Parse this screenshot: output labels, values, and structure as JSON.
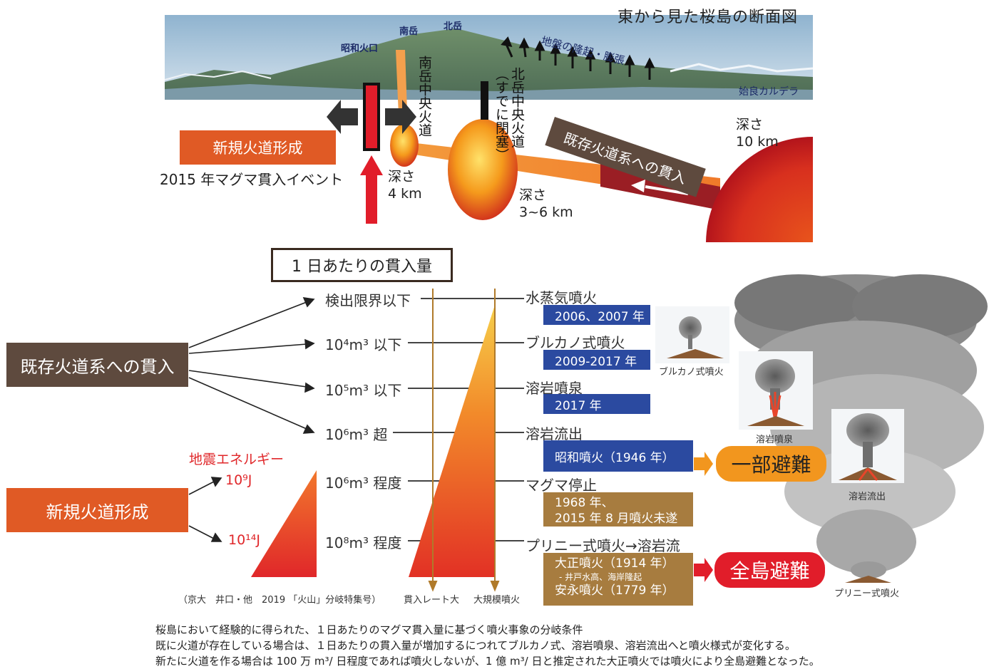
{
  "cross_section": {
    "title": "東から見た桜島の断面図",
    "peak_minami": "南岳",
    "peak_kita": "北岳",
    "showa_crater": "昭和火口",
    "uplift": "地盤の隆起・膨張",
    "aira_caldera": "始良カルデラ",
    "minami_conduit": "南岳中央火道",
    "kita_conduit": "北岳中央火道（すでに閉塞）",
    "new_conduit_box": "新規火道形成",
    "event_2015": "2015 年マグマ貫入イベント",
    "depth_4": [
      "深さ",
      "4 km"
    ],
    "depth_3_6": [
      "深さ",
      "3~6 km"
    ],
    "depth_10": [
      "深さ",
      "10 km"
    ],
    "existing_intrusion": "既存火道系への貫入"
  },
  "flow": {
    "header": "1 日あたりの貫入量",
    "existing_box": "既存火道系への貫入",
    "new_box": "新規火道形成",
    "seismic_energy": "地震エネルギー",
    "energy_low": "10⁹J",
    "energy_high": "10¹⁴J",
    "levels": [
      "検出限界以下",
      "10⁴m³ 以下",
      "10⁵m³ 以下",
      "10⁶m³ 超",
      "10⁶m³ 程度",
      "10⁸m³ 程度"
    ],
    "events": [
      "水蒸気噴火",
      "ブルカノ式噴火",
      "溶岩噴泉",
      "溶岩流出",
      "マグマ停止",
      "プリニー式噴火→溶岩流"
    ],
    "years_blue": [
      "2006、2007 年",
      "2009-2017 年",
      "2017 年",
      "昭和噴火（1946 年）"
    ],
    "magma_stop_years": [
      "1968 年、",
      "2015 年 8 月噴火未遂"
    ],
    "plinian_years": [
      "大正噴火（1914 年）",
      "- 井戸水高、海岸隆起",
      "安永噴火（1779 年）"
    ],
    "partial_evac": "一部避難",
    "full_evac": "全島避難",
    "axis_low": "貫入レート大",
    "axis_high": "大規模噴火",
    "citation": "（京大　井口・他　2019 「火山」分岐特集号）"
  },
  "plumes": {
    "vulcanian": "ブルカノ式噴火",
    "fountain": "溶岩噴泉",
    "lava_flow": "溶岩流出",
    "plinian": "プリニー式噴火"
  },
  "caption": [
    "桜島において経験的に得られた、１日あたりのマグマ貫入量に基づく噴火事象の分岐条件",
    "既に火道が存在している場合は、１日あたりの貫入量が増加するにつれてブルカノ式、溶岩噴泉、溶岩流出へと噴火様式が変化する。",
    "新たに火道を作る場合は 100 万 m³/ 日程度であれば噴火しないが、1 億 m³/ 日と推定された大正噴火では噴火により全島避難となった。"
  ],
  "colors": {
    "orange": "#e05a25",
    "brown": "#5e4a3e",
    "blue": "#2b4aa0",
    "tan": "#a77c3f",
    "red": "#e11d2a",
    "partial": "#f2961e"
  }
}
